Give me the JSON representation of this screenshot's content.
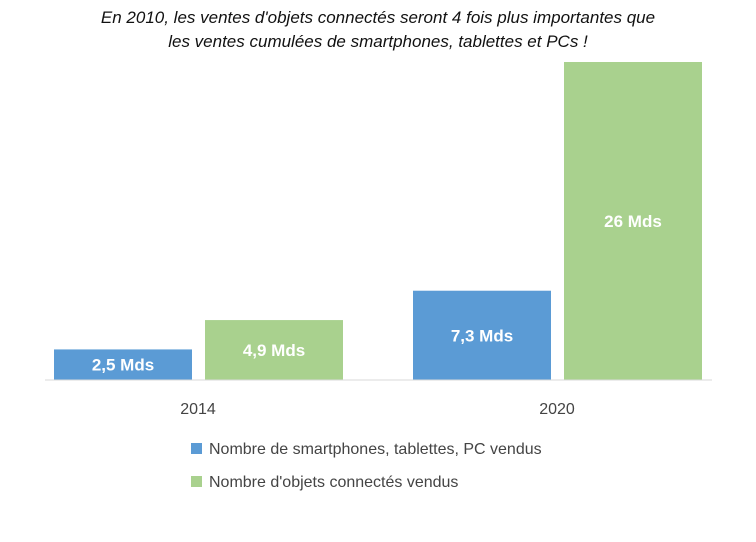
{
  "chart_data": {
    "type": "bar",
    "title_lines": [
      "En 2010, les ventes d'objets connectés seront 4 fois plus importantes que",
      "les ventes cumulées de smartphones, tablettes et PCs !"
    ],
    "categories": [
      "2014",
      "2020"
    ],
    "series": [
      {
        "name": "Nombre de smartphones, tablettes, PC vendus",
        "color": "#5b9bd5",
        "values": [
          2.5,
          7.3
        ],
        "labels": [
          "2,5 Mds",
          "7,3 Mds"
        ]
      },
      {
        "name": "Nombre d'objets connectés vendus",
        "color": "#a9d18e",
        "values": [
          4.9,
          26
        ],
        "labels": [
          "4,9 Mds",
          "26 Mds"
        ]
      }
    ],
    "ylim": [
      0,
      26
    ],
    "grid": false,
    "legend_position": "bottom"
  }
}
